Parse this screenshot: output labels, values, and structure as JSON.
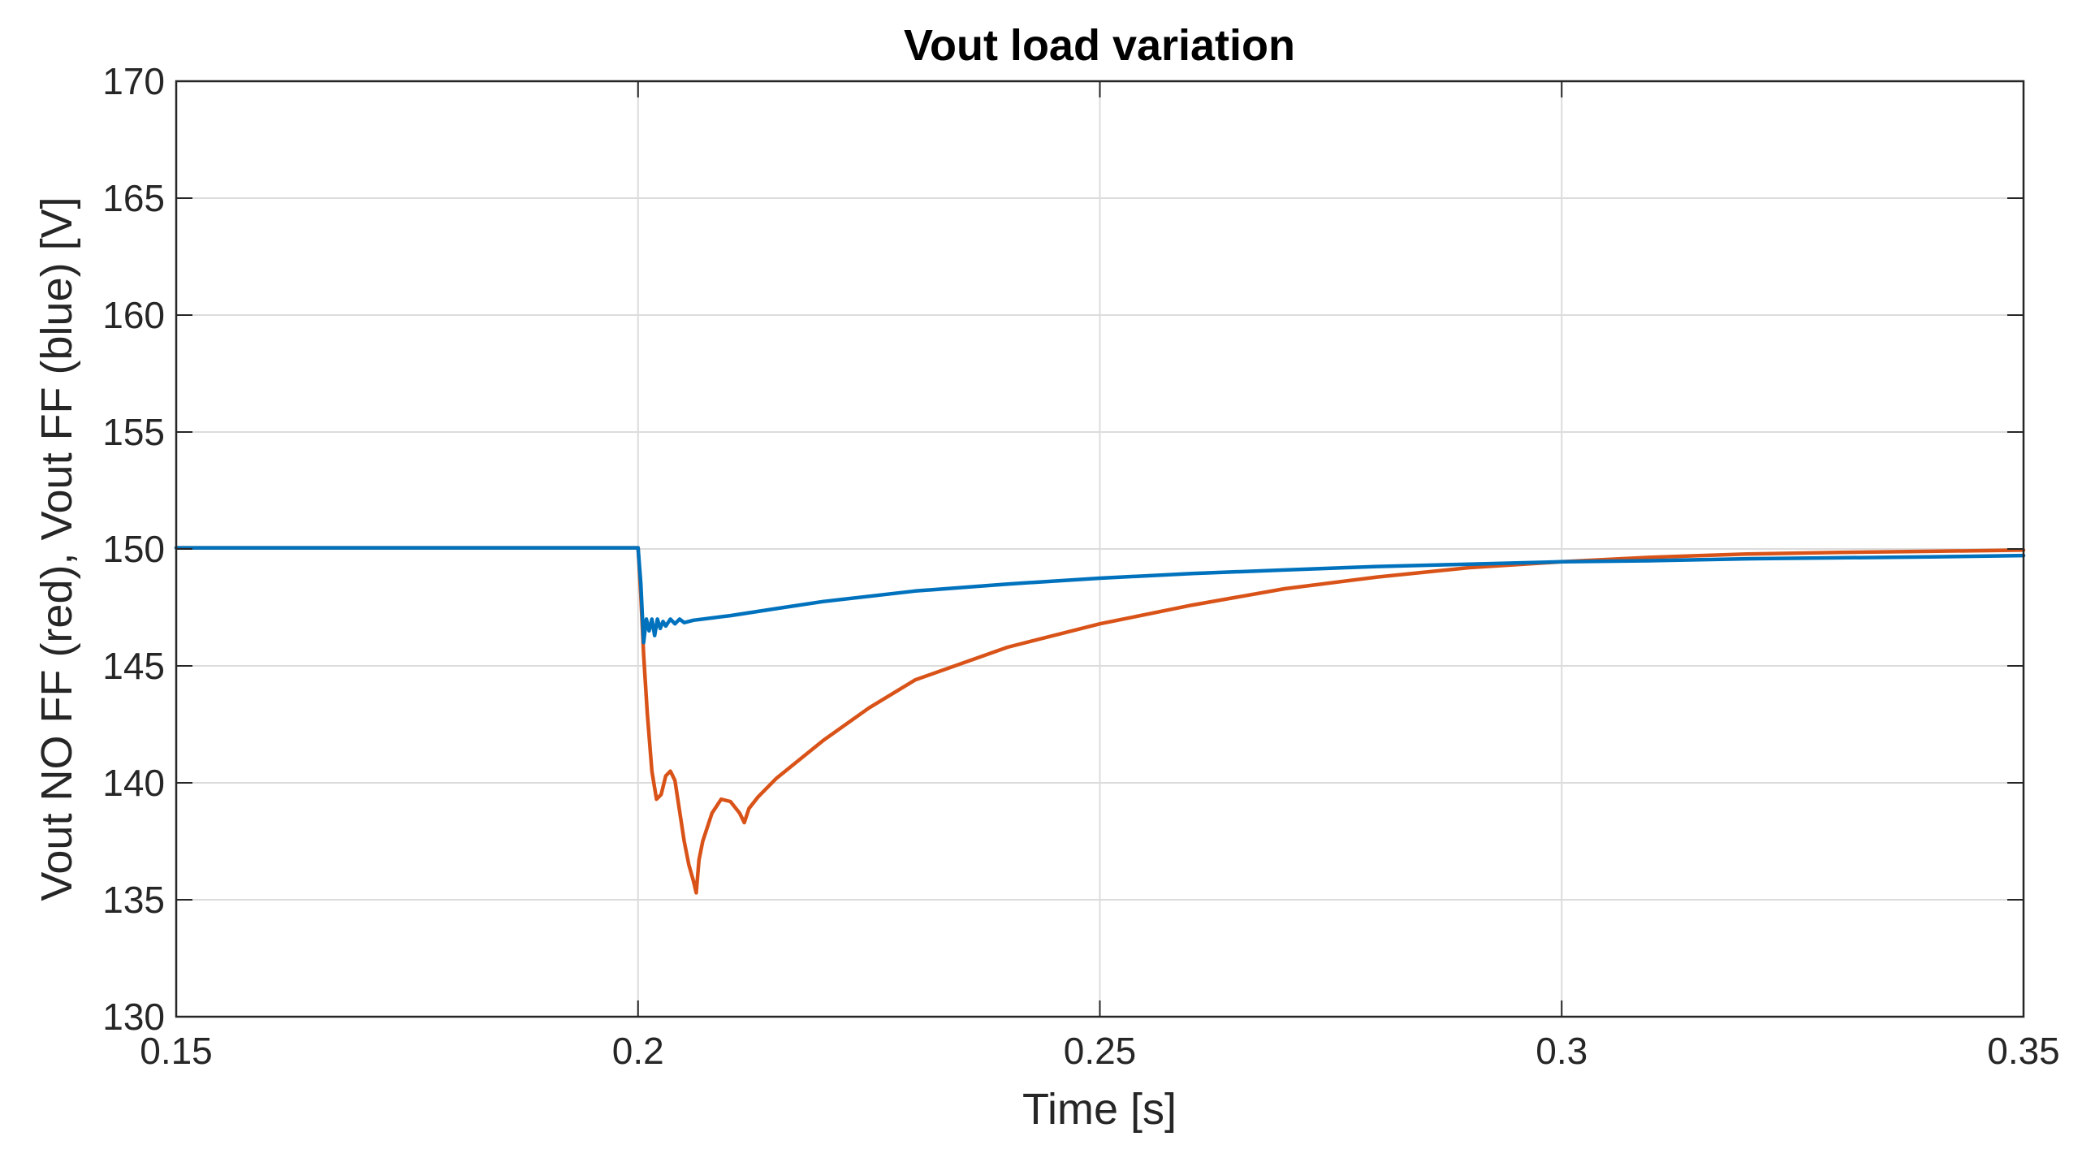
{
  "chart_data": {
    "type": "line",
    "title": "Vout load variation",
    "xlabel": "Time [s]",
    "ylabel": "Vout NO FF (red), Vout FF (blue) [V]",
    "xlim": [
      0.15,
      0.35
    ],
    "ylim": [
      130,
      170
    ],
    "xticks": [
      0.15,
      0.2,
      0.25,
      0.3,
      0.35
    ],
    "xtick_labels": [
      "0.15",
      "0.2",
      "0.25",
      "0.3",
      "0.35"
    ],
    "yticks": [
      130,
      135,
      140,
      145,
      150,
      155,
      160,
      165,
      170
    ],
    "ytick_labels": [
      "130",
      "135",
      "140",
      "145",
      "150",
      "155",
      "160",
      "165",
      "170"
    ],
    "grid": true,
    "series": [
      {
        "name": "Vout NO FF (red)",
        "color": "#D95319",
        "x": [
          0.15,
          0.19,
          0.2,
          0.2003,
          0.2006,
          0.201,
          0.2015,
          0.202,
          0.2025,
          0.203,
          0.2035,
          0.204,
          0.2045,
          0.205,
          0.2055,
          0.206,
          0.2063,
          0.2066,
          0.207,
          0.208,
          0.209,
          0.21,
          0.211,
          0.2115,
          0.212,
          0.213,
          0.215,
          0.22,
          0.225,
          0.23,
          0.24,
          0.25,
          0.26,
          0.27,
          0.28,
          0.29,
          0.3,
          0.31,
          0.32,
          0.33,
          0.34,
          0.35
        ],
        "y": [
          150.05,
          150.05,
          150.05,
          148.0,
          145.5,
          143.0,
          140.5,
          139.3,
          139.5,
          140.3,
          140.5,
          140.1,
          138.8,
          137.5,
          136.5,
          135.8,
          135.3,
          136.7,
          137.5,
          138.7,
          139.3,
          139.2,
          138.7,
          138.3,
          138.9,
          139.4,
          140.2,
          141.8,
          143.2,
          144.4,
          145.8,
          146.8,
          147.6,
          148.3,
          148.8,
          149.2,
          149.45,
          149.65,
          149.78,
          149.85,
          149.9,
          149.95
        ]
      },
      {
        "name": "Vout FF (blue)",
        "color": "#0072BD",
        "x": [
          0.15,
          0.19,
          0.2,
          0.2003,
          0.2006,
          0.2009,
          0.2012,
          0.2015,
          0.2018,
          0.2021,
          0.2024,
          0.2027,
          0.203,
          0.2035,
          0.204,
          0.2045,
          0.205,
          0.206,
          0.21,
          0.215,
          0.22,
          0.23,
          0.24,
          0.25,
          0.26,
          0.27,
          0.28,
          0.29,
          0.3,
          0.31,
          0.32,
          0.33,
          0.34,
          0.35
        ],
        "y": [
          150.05,
          150.05,
          150.05,
          148.5,
          146.0,
          147.0,
          146.5,
          147.0,
          146.3,
          147.0,
          146.6,
          146.9,
          146.7,
          147.0,
          146.8,
          147.0,
          146.85,
          146.95,
          147.15,
          147.45,
          147.75,
          148.2,
          148.5,
          148.75,
          148.95,
          149.1,
          149.25,
          149.35,
          149.45,
          149.5,
          149.58,
          149.62,
          149.66,
          149.72
        ]
      }
    ]
  }
}
